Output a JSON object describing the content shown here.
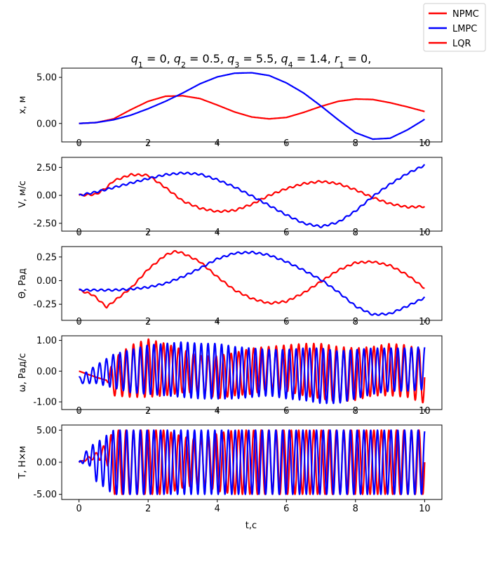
{
  "figure": {
    "title_parts": [
      "q",
      "1",
      " = 0, ",
      "q",
      "2",
      " = 0.5, ",
      "q",
      "3",
      " = 5.5, ",
      "q",
      "4",
      " = 1.4, ",
      "r",
      "1",
      " = 0,"
    ],
    "xlabel": "t,c"
  },
  "legend": [
    {
      "label": "NPMC",
      "color": "#ff0000"
    },
    {
      "label": "LMPC",
      "color": "#0000ff"
    },
    {
      "label": "LQR",
      "color": "#ff0000"
    }
  ],
  "chart_data": [
    {
      "type": "line",
      "ylabel": "x, м",
      "xlim": [
        -0.5,
        10.5
      ],
      "ylim": [
        -2.0,
        6.0
      ],
      "xticks": [
        0,
        2,
        4,
        6,
        8,
        10
      ],
      "yticks": [
        0.0,
        5.0
      ],
      "ytick_labels": [
        "0.00",
        "5.00"
      ],
      "series": [
        {
          "name": "NPMC",
          "color": "#ff0000",
          "x": [
            0,
            0.5,
            1,
            1.5,
            2,
            2.5,
            3,
            3.5,
            4,
            4.5,
            5,
            5.5,
            6,
            6.5,
            7,
            7.5,
            8,
            8.5,
            9,
            9.5,
            10
          ],
          "y": [
            0,
            0.1,
            0.5,
            1.5,
            2.4,
            2.95,
            3.0,
            2.7,
            2.0,
            1.25,
            0.7,
            0.5,
            0.65,
            1.2,
            1.85,
            2.4,
            2.65,
            2.6,
            2.25,
            1.8,
            1.3
          ]
        },
        {
          "name": "LMPC",
          "color": "#0000ff",
          "x": [
            0,
            0.5,
            1,
            1.5,
            2,
            2.5,
            3,
            3.5,
            4,
            4.5,
            5,
            5.5,
            6,
            6.5,
            7,
            7.5,
            8,
            8.5,
            9,
            9.5,
            10
          ],
          "y": [
            0,
            0.1,
            0.4,
            0.9,
            1.6,
            2.4,
            3.3,
            4.3,
            5.05,
            5.45,
            5.5,
            5.2,
            4.4,
            3.3,
            1.9,
            0.4,
            -1.0,
            -1.7,
            -1.6,
            -0.7,
            0.45
          ]
        }
      ]
    },
    {
      "type": "line",
      "ylabel": "V, м/с",
      "xlim": [
        -0.5,
        10.5
      ],
      "ylim": [
        -3.2,
        3.4
      ],
      "xticks": [
        0,
        2,
        4,
        6,
        8,
        10
      ],
      "yticks": [
        -2.5,
        0.0,
        2.5
      ],
      "ytick_labels": [
        "-2.50",
        "0.00",
        "2.50"
      ],
      "series": [
        {
          "name": "NPMC",
          "color": "#ff0000",
          "x": [
            0,
            0.5,
            0.8,
            1,
            1.5,
            2,
            2.5,
            3,
            3.5,
            4,
            4.5,
            5,
            5.5,
            6,
            6.5,
            7,
            7.5,
            8,
            8.5,
            9,
            9.5,
            10
          ],
          "y": [
            0,
            0.1,
            0.7,
            1.3,
            1.85,
            1.8,
            0.7,
            -0.5,
            -1.15,
            -1.45,
            -1.35,
            -0.8,
            0.0,
            0.6,
            1.05,
            1.25,
            1.05,
            0.5,
            -0.2,
            -0.75,
            -1.05,
            -1.0
          ]
        },
        {
          "name": "LMPC",
          "color": "#0000ff",
          "x": [
            0,
            0.5,
            1,
            1.5,
            2,
            2.5,
            3,
            3.5,
            4,
            4.5,
            5,
            5.5,
            6,
            6.5,
            7,
            7.5,
            8,
            8.5,
            9,
            9.5,
            10
          ],
          "y": [
            0,
            0.3,
            0.7,
            1.1,
            1.5,
            1.85,
            2.0,
            1.9,
            1.4,
            0.75,
            -0.05,
            -0.9,
            -1.75,
            -2.5,
            -2.8,
            -2.4,
            -1.4,
            -0.1,
            1.0,
            1.95,
            2.7
          ]
        }
      ]
    },
    {
      "type": "line",
      "ylabel": "Θ, Рад",
      "xlim": [
        -0.5,
        10.5
      ],
      "ylim": [
        -0.42,
        0.36
      ],
      "xticks": [
        0,
        2,
        4,
        6,
        8,
        10
      ],
      "yticks": [
        -0.25,
        0.0,
        0.25
      ],
      "ytick_labels": [
        "-0.25",
        "0.00",
        "0.25"
      ],
      "series": [
        {
          "name": "NPMC",
          "color": "#ff0000",
          "x": [
            0,
            0.4,
            0.8,
            1,
            1.5,
            2,
            2.5,
            2.8,
            3,
            3.5,
            4,
            4.5,
            5,
            5.5,
            6,
            6.5,
            7,
            7.5,
            8,
            8.5,
            9,
            9.5,
            10
          ],
          "y": [
            -0.1,
            -0.15,
            -0.28,
            -0.22,
            -0.08,
            0.12,
            0.27,
            0.31,
            0.29,
            0.2,
            0.04,
            -0.1,
            -0.19,
            -0.24,
            -0.22,
            -0.13,
            -0.01,
            0.11,
            0.19,
            0.2,
            0.16,
            0.06,
            -0.08
          ]
        },
        {
          "name": "LMPC",
          "color": "#0000ff",
          "x": [
            0,
            0.5,
            1,
            1.5,
            2,
            2.5,
            3,
            3.5,
            4,
            4.5,
            5,
            5.5,
            6,
            6.5,
            7,
            7.5,
            8,
            8.5,
            9,
            9.5,
            10
          ],
          "y": [
            -0.1,
            -0.1,
            -0.1,
            -0.09,
            -0.07,
            -0.03,
            0.04,
            0.13,
            0.23,
            0.29,
            0.3,
            0.27,
            0.2,
            0.11,
            0.01,
            -0.12,
            -0.27,
            -0.36,
            -0.35,
            -0.27,
            -0.18
          ]
        }
      ]
    },
    {
      "type": "line",
      "ylabel": "ω, Рад/с",
      "xlim": [
        -0.5,
        10.5
      ],
      "ylim": [
        -1.25,
        1.15
      ],
      "xticks": [
        0,
        2,
        4,
        6,
        8,
        10
      ],
      "yticks": [
        -1.0,
        0.0,
        1.0
      ],
      "ytick_labels": [
        "-1.00",
        "0.00",
        "1.00"
      ],
      "series": [
        {
          "name": "NPMC",
          "color": "#ff0000",
          "oscillating": true,
          "x": [
            0,
            0.5,
            0.8,
            1,
            1.5,
            2,
            2.5,
            3,
            3.5,
            4,
            4.5,
            5,
            5.5,
            6,
            6.5,
            7,
            7.5,
            8,
            8.5,
            9,
            9.5,
            10
          ],
          "center": [
            0.0,
            -0.2,
            -0.3,
            -0.2,
            0.0,
            0.1,
            0.05,
            0.0,
            -0.1,
            -0.2,
            -0.1,
            0.0,
            0.1,
            0.1,
            0.05,
            0.0,
            -0.1,
            -0.1,
            0.0,
            0.05,
            0.0,
            -0.2
          ],
          "amplitude": [
            0.0,
            0.0,
            0.0,
            0.6,
            0.85,
            0.95,
            0.85,
            0.7,
            0.6,
            0.7,
            0.7,
            0.75,
            0.7,
            0.75,
            0.85,
            0.9,
            0.9,
            0.85,
            0.8,
            0.85,
            0.85,
            0.85
          ]
        },
        {
          "name": "LMPC",
          "color": "#0000ff",
          "oscillating": true,
          "x": [
            0,
            0.5,
            1,
            1.5,
            2,
            2.5,
            3,
            3.5,
            4,
            4.5,
            5,
            5.5,
            6,
            6.5,
            7,
            7.5,
            8,
            8.5,
            9,
            9.5,
            10
          ],
          "center": [
            -0.3,
            -0.1,
            0.0,
            0.0,
            0.05,
            0.05,
            0.05,
            0.0,
            0.0,
            -0.05,
            -0.05,
            -0.05,
            -0.1,
            -0.1,
            -0.15,
            -0.2,
            -0.1,
            0.0,
            0.05,
            0.05,
            0.1
          ],
          "amplitude": [
            0.1,
            0.3,
            0.55,
            0.7,
            0.8,
            0.85,
            0.9,
            0.9,
            0.9,
            0.85,
            0.8,
            0.75,
            0.8,
            0.85,
            0.9,
            0.85,
            0.8,
            0.75,
            0.7,
            0.7,
            0.7
          ]
        }
      ]
    },
    {
      "type": "line",
      "ylabel": "T, Н×м",
      "xlim": [
        -0.5,
        10.5
      ],
      "ylim": [
        -5.8,
        5.8
      ],
      "xticks": [
        0,
        2,
        4,
        6,
        8,
        10
      ],
      "xtick_labels": [
        "0",
        "2",
        "4",
        "6",
        "8",
        "10"
      ],
      "yticks": [
        -5.0,
        0.0,
        5.0
      ],
      "ytick_labels": [
        "-5.00",
        "0.00",
        "5.00"
      ],
      "series": [
        {
          "name": "NPMC",
          "color": "#ff0000",
          "oscillating": true,
          "x": [
            0,
            0.5,
            0.8,
            1,
            1.5,
            2,
            2.5,
            3,
            3.5,
            4,
            4.5,
            5,
            5.5,
            6,
            6.5,
            7,
            7.5,
            8,
            8.5,
            9,
            9.5,
            10
          ],
          "center": [
            0,
            1.0,
            1.5,
            0,
            0,
            0,
            0,
            0,
            0,
            0,
            0,
            0,
            0,
            0,
            0,
            0,
            0,
            0,
            0,
            0,
            0,
            0
          ],
          "amplitude": [
            0,
            0.5,
            1.5,
            5.0,
            5.0,
            5.0,
            5.0,
            4.0,
            3.5,
            4.5,
            5.0,
            5.0,
            5.0,
            5.0,
            5.0,
            5.0,
            5.0,
            5.0,
            5.0,
            5.0,
            5.0,
            5.0
          ]
        },
        {
          "name": "LMPC",
          "color": "#0000ff",
          "oscillating": true,
          "x": [
            0,
            0.3,
            0.5,
            1,
            1.5,
            2,
            2.5,
            3,
            3.5,
            4,
            4.5,
            5,
            5.5,
            6,
            6.5,
            7,
            7.5,
            8,
            8.5,
            9,
            9.5,
            10
          ],
          "center": [
            0,
            1.0,
            0,
            0,
            0,
            0,
            0,
            0,
            0,
            0,
            0,
            0,
            0,
            0,
            0,
            0,
            0,
            0,
            0,
            0,
            0,
            0
          ],
          "amplitude": [
            0,
            1.5,
            3.0,
            5.0,
            5.0,
            5.0,
            5.0,
            5.0,
            5.0,
            5.0,
            5.0,
            5.0,
            5.0,
            5.0,
            5.0,
            5.0,
            5.0,
            5.0,
            5.0,
            5.0,
            5.0,
            5.0
          ]
        }
      ]
    }
  ]
}
